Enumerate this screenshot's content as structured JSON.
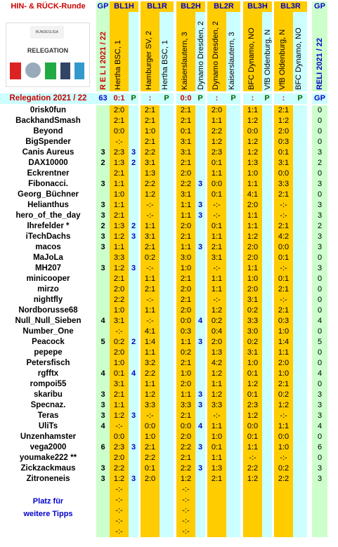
{
  "title": "HIN- & RÜCK-Runde",
  "headers": {
    "gp": "GP",
    "bl1h": "BL1H",
    "bl1r": "BL1R",
    "bl2h": "BL2H",
    "bl2r": "BL2R",
    "bl3h": "BL3H",
    "bl3r": "BL3R",
    "gp2": "GP"
  },
  "logo": {
    "label": "RELEGATION",
    "brand": "BUNDESLIGA"
  },
  "season_vertical": "R E L I   2021 / 22",
  "season_vertical_right": "RELI  2021 / 22",
  "matches": {
    "m1h": "Hertha BSC, 1",
    "m1r": "Hamburger SV, 2",
    "m1r_team": "Hamburger SV, 2",
    "m1r2": "Hertha BSC, 1",
    "m2h": "Kaiserslautern, 3",
    "m2h2": "Dynamo Dresden, 2",
    "m2r": "Dynamo Dresden, 2",
    "m2r2": "Kaiserslautern, 3",
    "m3h": "BFC Dynamo, NO",
    "m3h2": "VfB Oldenburg, N",
    "m3r": "VfB Oldenburg, N",
    "m3r2": "BFC Dynamo, NO"
  },
  "summary": {
    "label": "Relegation 2021 / 22",
    "gp": "63",
    "r1h": "0:1",
    "p1h": "P",
    "r1r": ":",
    "p1r": "P",
    "r2h": "0:0",
    "p2h": "P",
    "r2r": ":",
    "p2r": "P",
    "r3h": ":",
    "p3h": "P",
    "r3r": ":",
    "p3r": "P",
    "gp2": "GP"
  },
  "rows": [
    [
      "0risk0fun",
      "",
      "2:0",
      "",
      "2:1",
      "",
      "2:1",
      "",
      "2:0",
      "",
      "1:1",
      "",
      "2:1",
      "",
      "0"
    ],
    [
      "BackhandSmash",
      "",
      "2:1",
      "",
      "2:1",
      "",
      "2:1",
      "",
      "1:1",
      "",
      "1:2",
      "",
      "1:2",
      "",
      "0"
    ],
    [
      "Beyond",
      "",
      "0:0",
      "",
      "1:0",
      "",
      "0:1",
      "",
      "2:2",
      "",
      "0:0",
      "",
      "2:0",
      "",
      "0"
    ],
    [
      "BigSpender",
      "",
      "-:-",
      "",
      "2:1",
      "",
      "3:1",
      "",
      "1:2",
      "",
      "1:2",
      "",
      "0:3",
      "",
      "0"
    ],
    [
      "Canis Aureus",
      "3",
      "2:3",
      "3",
      "2:2",
      "",
      "3:1",
      "",
      "2:3",
      "",
      "1:2",
      "",
      "0:1",
      "",
      "3"
    ],
    [
      "DAX10000",
      "2",
      "1:3",
      "2",
      "3:1",
      "",
      "2:1",
      "",
      "0:1",
      "",
      "1:3",
      "",
      "3:1",
      "",
      "2"
    ],
    [
      "Eckrentner",
      "",
      "2:1",
      "",
      "1:3",
      "",
      "2:0",
      "",
      "1:1",
      "",
      "1:0",
      "",
      "0:0",
      "",
      "0"
    ],
    [
      "Fibonacci.",
      "3",
      "1:1",
      "",
      "2:2",
      "",
      "2:2",
      "3",
      "0:0",
      "",
      "1:1",
      "",
      "3:3",
      "",
      "3"
    ],
    [
      "Georg_Büchner",
      "",
      "1:0",
      "",
      "1:2",
      "",
      "3:1",
      "",
      "0:1",
      "",
      "4:1",
      "",
      "2:1",
      "",
      "0"
    ],
    [
      "Helianthus",
      "3",
      "1:1",
      "",
      "-:-",
      "",
      "1:1",
      "3",
      "-:-",
      "",
      "2:0",
      "",
      "-:-",
      "",
      "3"
    ],
    [
      "hero_of_the_day",
      "3",
      "2:1",
      "",
      "-:-",
      "",
      "1:1",
      "3",
      "-:-",
      "",
      "1:1",
      "",
      "-:-",
      "",
      "3"
    ],
    [
      "Ihrefelder *",
      "2",
      "1:3",
      "2",
      "1:1",
      "",
      "2:0",
      "",
      "0:1",
      "",
      "1:1",
      "",
      "2:1",
      "",
      "2"
    ],
    [
      "iTechDachs",
      "3",
      "1:2",
      "3",
      "3:1",
      "",
      "2:1",
      "",
      "1:1",
      "",
      "1:2",
      "",
      "4:2",
      "",
      "3"
    ],
    [
      "macos",
      "3",
      "1:1",
      "",
      "2:1",
      "",
      "1:1",
      "3",
      "2:1",
      "",
      "2:0",
      "",
      "0:0",
      "",
      "3"
    ],
    [
      "MaJoLa",
      "",
      "3:3",
      "",
      "0:2",
      "",
      "3:0",
      "",
      "3:1",
      "",
      "2:0",
      "",
      "0:1",
      "",
      "0"
    ],
    [
      "MH207",
      "3",
      "1:2",
      "3",
      "-:-",
      "",
      "1:0",
      "",
      "-:-",
      "",
      "1:1",
      "",
      "-:-",
      "",
      "3"
    ],
    [
      "minicooper",
      "",
      "2:1",
      "",
      "1:1",
      "",
      "2:1",
      "",
      "1:1",
      "",
      "1:0",
      "",
      "0:1",
      "",
      "0"
    ],
    [
      "mirzo",
      "",
      "2:0",
      "",
      "2:1",
      "",
      "2:0",
      "",
      "1:1",
      "",
      "2:0",
      "",
      "2:1",
      "",
      "0"
    ],
    [
      "nightfly",
      "",
      "2:2",
      "",
      "-:-",
      "",
      "2:1",
      "",
      "-:-",
      "",
      "3:1",
      "",
      "-:-",
      "",
      "0"
    ],
    [
      "Nordborusse68",
      "",
      "1:0",
      "",
      "1:1",
      "",
      "2:0",
      "",
      "1:2",
      "",
      "0:2",
      "",
      "2:1",
      "",
      "0"
    ],
    [
      "Null_Null_Sieben",
      "4",
      "3:1",
      "",
      "-:-",
      "",
      "0:0",
      "4",
      "0:2",
      "",
      "3:3",
      "",
      "0:3",
      "",
      "4"
    ],
    [
      "Number_One",
      "",
      "-:-",
      "",
      "4:1",
      "",
      "0:3",
      "",
      "0:4",
      "",
      "3:0",
      "",
      "1:0",
      "",
      "0"
    ],
    [
      "Peacock",
      "5",
      "0:2",
      "2",
      "1:4",
      "",
      "1:1",
      "3",
      "2:0",
      "",
      "0:2",
      "",
      "1:4",
      "",
      "5"
    ],
    [
      "pepepe",
      "",
      "2:0",
      "",
      "1:1",
      "",
      "0:2",
      "",
      "1:3",
      "",
      "3:1",
      "",
      "1:1",
      "",
      "0"
    ],
    [
      "Petersfisch",
      "",
      "1:0",
      "",
      "3:2",
      "",
      "2:1",
      "",
      "4:2",
      "",
      "1:0",
      "",
      "2:0",
      "",
      "0"
    ],
    [
      "rgfftx",
      "4",
      "0:1",
      "4",
      "2:2",
      "",
      "1:0",
      "",
      "1:2",
      "",
      "0:1",
      "",
      "1:0",
      "",
      "4"
    ],
    [
      "rompoi55",
      "",
      "3:1",
      "",
      "1:1",
      "",
      "2:0",
      "",
      "1:1",
      "",
      "1:2",
      "",
      "2:1",
      "",
      "0"
    ],
    [
      "skaribu",
      "3",
      "2:1",
      "",
      "1:2",
      "",
      "1:1",
      "3",
      "1:2",
      "",
      "0:1",
      "",
      "0:2",
      "",
      "3"
    ],
    [
      "Specnaz.",
      "3",
      "1:1",
      "",
      "3:3",
      "",
      "3:3",
      "3",
      "3:3",
      "",
      "2:3",
      "",
      "1:2",
      "",
      "3"
    ],
    [
      "Teras",
      "3",
      "1:2",
      "3",
      "-:-",
      "",
      "2:1",
      "",
      "-:-",
      "",
      "1:2",
      "",
      "-:-",
      "",
      "3"
    ],
    [
      "UliTs",
      "4",
      "-:-",
      "",
      "0:0",
      "",
      "0:0",
      "4",
      "1:1",
      "",
      "0:0",
      "",
      "1:1",
      "",
      "4"
    ],
    [
      "Unzenhamster",
      "",
      "0:0",
      "",
      "1:0",
      "",
      "2:0",
      "",
      "1:0",
      "",
      "0:1",
      "",
      "0:0",
      "",
      "0"
    ],
    [
      "vega2000",
      "6",
      "2:3",
      "3",
      "2:1",
      "",
      "2:2",
      "3",
      "0:1",
      "",
      "1:1",
      "",
      "1:0",
      "",
      "6"
    ],
    [
      "youmake222 **",
      "",
      "2:0",
      "",
      "2:2",
      "",
      "2:1",
      "",
      "1:1",
      "",
      "-:-",
      "",
      "-:-",
      "",
      "0"
    ],
    [
      "Zickzackmaus",
      "3",
      "2:2",
      "",
      "0:1",
      "",
      "2:2",
      "3",
      "1:3",
      "",
      "2:2",
      "",
      "0:2",
      "",
      "3"
    ],
    [
      "Zitroneneis",
      "3",
      "1:2",
      "3",
      "2:0",
      "",
      "1:2",
      "",
      "2:1",
      "",
      "1:2",
      "",
      "2:2",
      "",
      "3"
    ]
  ],
  "empty_rows_count_label": "-:-",
  "footer": {
    "line1": "Platz für",
    "line2": "weitere Tipps"
  },
  "colors": {
    "gold": "#ffcc00",
    "green": "#ccffcc",
    "cyan": "#ccffff",
    "red": "#cc0000",
    "blue": "#0000cc"
  }
}
